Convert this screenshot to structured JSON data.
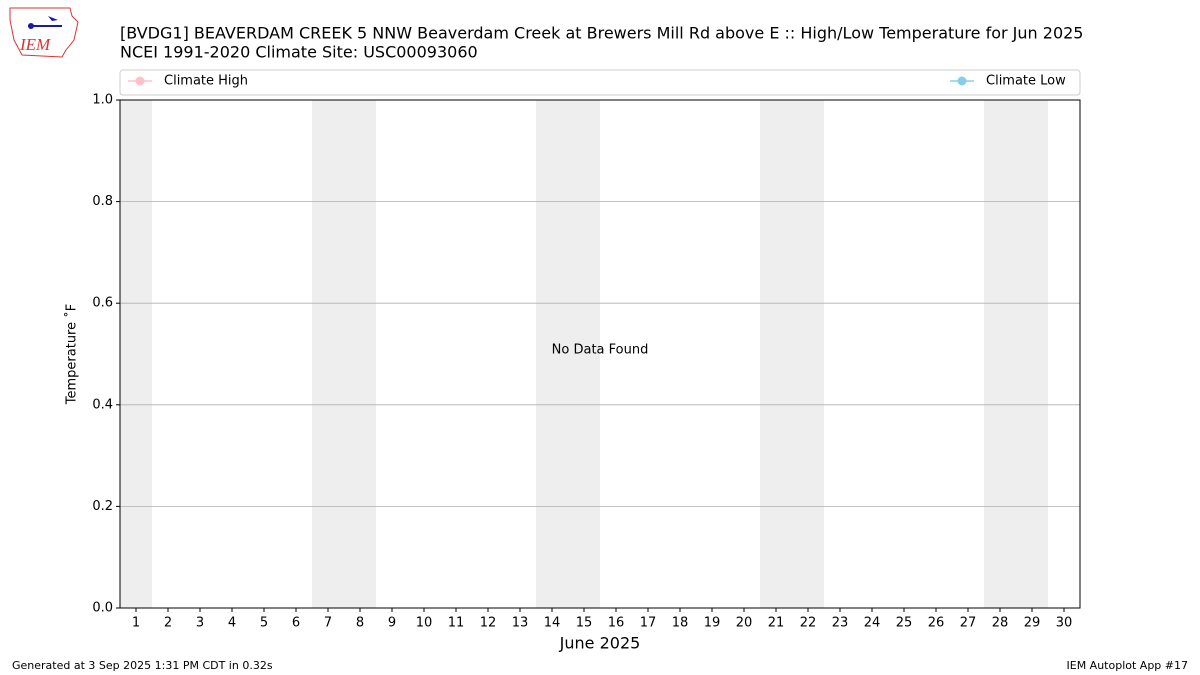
{
  "logo_text": "IEM",
  "footer": {
    "left": "Generated at 3 Sep 2025 1:31 PM CDT in 0.32s",
    "right": "IEM Autoplot App #17"
  },
  "chart_data": {
    "type": "line",
    "title": "[BVDG1] BEAVERDAM CREEK 5 NNW Beaverdam Creek at Brewers Mill Rd above E :: High/Low Temperature for Jun 2025",
    "subtitle": "NCEI 1991-2020 Climate Site: USC00093060",
    "xlabel": "June 2025",
    "ylabel": "Temperature ˚F",
    "annotation": "No Data Found",
    "x": [
      1,
      2,
      3,
      4,
      5,
      6,
      7,
      8,
      9,
      10,
      11,
      12,
      13,
      14,
      15,
      16,
      17,
      18,
      19,
      20,
      21,
      22,
      23,
      24,
      25,
      26,
      27,
      28,
      29,
      30
    ],
    "series": [
      {
        "name": "Climate High",
        "color": "#ffc0cb",
        "values": [
          null,
          null,
          null,
          null,
          null,
          null,
          null,
          null,
          null,
          null,
          null,
          null,
          null,
          null,
          null,
          null,
          null,
          null,
          null,
          null,
          null,
          null,
          null,
          null,
          null,
          null,
          null,
          null,
          null,
          null
        ]
      },
      {
        "name": "Climate Low",
        "color": "#87ceeb",
        "values": [
          null,
          null,
          null,
          null,
          null,
          null,
          null,
          null,
          null,
          null,
          null,
          null,
          null,
          null,
          null,
          null,
          null,
          null,
          null,
          null,
          null,
          null,
          null,
          null,
          null,
          null,
          null,
          null,
          null,
          null
        ]
      }
    ],
    "weekend_days": [
      1,
      7,
      8,
      14,
      15,
      21,
      22,
      28,
      29
    ],
    "xlim": [
      0.5,
      30.5
    ],
    "xticks": [
      1,
      2,
      3,
      4,
      5,
      6,
      7,
      8,
      9,
      10,
      11,
      12,
      13,
      14,
      15,
      16,
      17,
      18,
      19,
      20,
      21,
      22,
      23,
      24,
      25,
      26,
      27,
      28,
      29,
      30
    ],
    "ylim": [
      0,
      1
    ],
    "yticks": [
      {
        "value": 0,
        "label": "0.0"
      },
      {
        "value": 0.2,
        "label": "0.2"
      },
      {
        "value": 0.4,
        "label": "0.4"
      },
      {
        "value": 0.6,
        "label": "0.6"
      },
      {
        "value": 0.8,
        "label": "0.8"
      },
      {
        "value": 1,
        "label": "1.0"
      }
    ],
    "grid": true,
    "legend": "top"
  }
}
